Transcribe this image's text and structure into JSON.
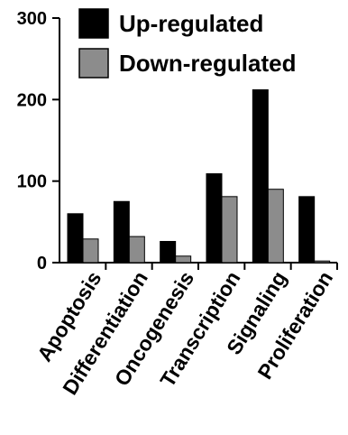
{
  "chart_data": {
    "type": "bar",
    "categories": [
      "Apoptosis",
      "Differentiation",
      "Oncogenesis",
      "Transcription",
      "Signaling",
      "Proliferation"
    ],
    "series": [
      {
        "name": "Up-regulated",
        "values": [
          60,
          75,
          26,
          109,
          212,
          81
        ],
        "color": "#000000"
      },
      {
        "name": "Down-regulated",
        "values": [
          29,
          32,
          8,
          81,
          90,
          2
        ],
        "color": "#8c8c8c"
      }
    ],
    "ylim": [
      0,
      300
    ],
    "yticks": [
      0,
      100,
      200,
      300
    ],
    "legend_position": "top-right",
    "grid": false,
    "title": "",
    "xlabel": "",
    "ylabel": ""
  }
}
